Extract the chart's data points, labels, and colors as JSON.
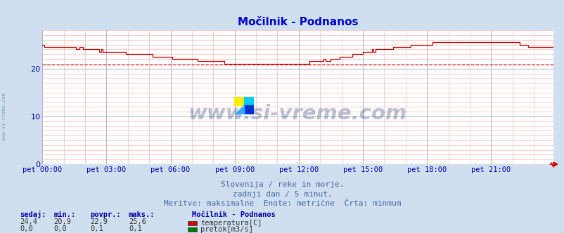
{
  "title": "Močilnik - Podnanos",
  "bg_color": "#d0dff0",
  "plot_bg_color": "#ffffff",
  "x_labels": [
    "pet 00:00",
    "pet 03:00",
    "pet 06:00",
    "pet 09:00",
    "pet 12:00",
    "pet 15:00",
    "pet 18:00",
    "pet 21:00"
  ],
  "x_ticks_norm": [
    0,
    36,
    72,
    108,
    144,
    180,
    216,
    252
  ],
  "y_ticks": [
    0,
    10,
    20
  ],
  "ylim": [
    0,
    28
  ],
  "xlim": [
    0,
    287
  ],
  "temp_color": "#cc0000",
  "flow_color": "#007700",
  "min_line_color": "#cc0000",
  "min_line_value": 20.9,
  "subtitle1": "Slovenija / reke in morje.",
  "subtitle2": "zadnji dan / 5 minut.",
  "subtitle3": "Meritve: maksimalne  Enote: metrične  Črta: minmum",
  "legend_title": "Močilnik - Podnanos",
  "legend_items": [
    {
      "label": "temperatura[C]",
      "color": "#cc0000"
    },
    {
      "label": "pretok[m3/s]",
      "color": "#007700"
    }
  ],
  "stats_headers": [
    "sedaj:",
    "min.:",
    "povpr.:",
    "maks.:"
  ],
  "stats_temp": [
    "24,4",
    "20,9",
    "22,9",
    "25,6"
  ],
  "stats_flow": [
    "0,0",
    "0,0",
    "0,1",
    "0,1"
  ],
  "watermark_text": "www.si-vreme.com",
  "watermark_color": "#1a3a6a",
  "side_text": "www.si-vreme.com",
  "title_color": "#0000cc",
  "axis_label_color": "#0000aa",
  "stats_label_color": "#0000aa",
  "text_color": "#4466aa"
}
